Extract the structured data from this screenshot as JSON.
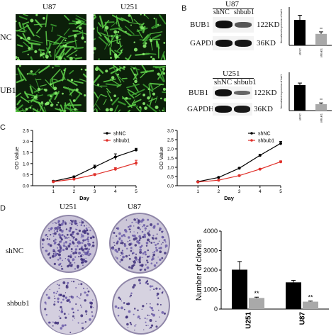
{
  "panel_letters": {
    "b": "B",
    "c": "C",
    "d": "D"
  },
  "panel_a": {
    "columns": [
      "U87",
      "U251"
    ],
    "rows": [
      "NC",
      "UB1"
    ]
  },
  "panel_b_u87": {
    "cell_line": "U87",
    "lanes": [
      "shNC",
      "shbub1"
    ],
    "bands": [
      "BUB1",
      "GAPDH"
    ],
    "sizes": [
      "122KD",
      "36KD"
    ]
  },
  "panel_b_u251": {
    "cell_line": "U251",
    "lanes": [
      "shNC",
      "shbub1"
    ],
    "bands": [
      "BUB1",
      "GAPDH"
    ],
    "sizes": [
      "122KD",
      "36KD"
    ]
  },
  "panel_d": {
    "columns": [
      "U251",
      "U87"
    ],
    "rows": [
      "shNC",
      "shbub1"
    ]
  },
  "colors": {
    "shNC": "#000000",
    "shbub1": "#e0302a",
    "bar_control": "#000000",
    "bar_knockdown": "#a9a9a9"
  },
  "chart_data": [
    {
      "type": "bar",
      "id": "b-u87-quant",
      "ylabel": "Normalized expression of bub1",
      "categories": [
        "shNC",
        "shbub1"
      ],
      "values": [
        1.0,
        0.45
      ],
      "errors": [
        0.18,
        0.08
      ],
      "ylim": [
        0,
        1.5
      ],
      "annotations": [
        "**"
      ]
    },
    {
      "type": "bar",
      "id": "b-u251-quant",
      "ylabel": "Normalized expression of bub1",
      "categories": [
        "shNC",
        "shbub1"
      ],
      "values": [
        1.0,
        0.25
      ],
      "errors": [
        0.08,
        0.05
      ],
      "ylim": [
        0,
        1.5
      ],
      "annotations": [
        "**"
      ]
    },
    {
      "type": "line",
      "id": "c-u87",
      "xlabel": "Day",
      "ylabel": "OD Value",
      "x": [
        1,
        2,
        3,
        4,
        5
      ],
      "xticks": [
        "1",
        "2",
        "3",
        "4",
        "5"
      ],
      "yticks": [
        "0.0",
        "0.5",
        "1.0",
        "1.5",
        "2.0",
        "2.5"
      ],
      "ylim": [
        0,
        2.5
      ],
      "xlim": [
        0,
        5
      ],
      "legend": "top-right",
      "series": [
        {
          "name": "shNC",
          "values": [
            0.2,
            0.4,
            0.85,
            1.3,
            1.62
          ],
          "errors": [
            0.03,
            0.04,
            0.08,
            0.14,
            0.07
          ]
        },
        {
          "name": "shbub1",
          "values": [
            0.18,
            0.3,
            0.5,
            0.75,
            1.03
          ],
          "errors": [
            0.03,
            0.03,
            0.05,
            0.07,
            0.12
          ]
        }
      ]
    },
    {
      "type": "line",
      "id": "c-u251",
      "xlabel": "Day",
      "ylabel": "OD Value",
      "x": [
        1,
        2,
        3,
        4,
        5
      ],
      "xticks": [
        "1",
        "2",
        "3",
        "4",
        "5"
      ],
      "yticks": [
        "0.0",
        "0.5",
        "1.0",
        "1.5",
        "2.0",
        "2.5",
        "3.0"
      ],
      "ylim": [
        0,
        3.0
      ],
      "xlim": [
        0,
        5
      ],
      "legend": "top-right",
      "series": [
        {
          "name": "shNC",
          "values": [
            0.22,
            0.45,
            0.95,
            1.65,
            2.3
          ],
          "errors": [
            0.02,
            0.03,
            0.04,
            0.05,
            0.1
          ]
        },
        {
          "name": "shbub1",
          "values": [
            0.2,
            0.3,
            0.55,
            0.9,
            1.3
          ],
          "errors": [
            0.02,
            0.02,
            0.03,
            0.04,
            0.05
          ]
        }
      ]
    },
    {
      "type": "bar",
      "id": "d-clones",
      "ylabel": "Number of clones",
      "categories": [
        "U251",
        "U87"
      ],
      "yticks": [
        "0",
        "1000",
        "2000",
        "3000",
        "4000"
      ],
      "ylim": [
        0,
        4000
      ],
      "series": [
        {
          "name": "shNC",
          "values": [
            2020,
            1370
          ],
          "errors": [
            420,
            100
          ]
        },
        {
          "name": "shbub1",
          "values": [
            570,
            380
          ],
          "errors": [
            40,
            30
          ]
        }
      ],
      "annotations": [
        "**",
        "**"
      ]
    }
  ]
}
